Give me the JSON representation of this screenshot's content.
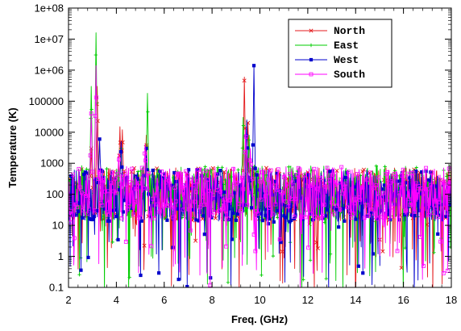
{
  "chart_data": {
    "type": "line",
    "title": "",
    "xlabel": "Freq. (GHz)",
    "ylabel": "Temperature (K)",
    "xlim": [
      2,
      18
    ],
    "ylim": [
      0.1,
      100000000
    ],
    "yscale": "log",
    "grid": false,
    "legend_position": "top-right",
    "x_ticks": [
      2,
      4,
      6,
      8,
      10,
      12,
      14,
      16,
      18
    ],
    "x_tick_labels": [
      "2",
      "4",
      "6",
      "8",
      "10",
      "12",
      "14",
      "16",
      "18"
    ],
    "y_ticks": [
      0.1,
      1,
      10,
      100,
      1000,
      10000,
      100000,
      1000000,
      10000000,
      100000000
    ],
    "y_tick_labels": [
      "0.1",
      "1",
      "10",
      "100",
      "1000",
      "10000",
      "100000",
      "1e+06",
      "1e+07",
      "1e+08"
    ],
    "series": [
      {
        "name": "North",
        "color": "#e41a1c",
        "marker": "x",
        "baseline": 100,
        "noise_seed": 11,
        "peaks": [
          {
            "x": 2.95,
            "y": 3000
          },
          {
            "x": 3.2,
            "y": 300000
          },
          {
            "x": 4.15,
            "y": 15000
          },
          {
            "x": 4.25,
            "y": 12000
          },
          {
            "x": 5.25,
            "y": 8000
          },
          {
            "x": 9.35,
            "y": 600000
          },
          {
            "x": 9.5,
            "y": 20000
          }
        ]
      },
      {
        "name": "East",
        "color": "#00cc00",
        "marker": "+",
        "baseline": 120,
        "noise_seed": 23,
        "peaks": [
          {
            "x": 2.95,
            "y": 300000
          },
          {
            "x": 3.15,
            "y": 16000000
          },
          {
            "x": 4.2,
            "y": 3000
          },
          {
            "x": 5.3,
            "y": 180000
          },
          {
            "x": 9.3,
            "y": 30000
          },
          {
            "x": 9.55,
            "y": 8000
          }
        ]
      },
      {
        "name": "West",
        "color": "#0000cc",
        "marker": "square-filled",
        "baseline": 90,
        "noise_seed": 37,
        "peaks": [
          {
            "x": 3.3,
            "y": 6000
          },
          {
            "x": 4.2,
            "y": 5000
          },
          {
            "x": 5.25,
            "y": 3000
          },
          {
            "x": 9.45,
            "y": 25000
          },
          {
            "x": 9.75,
            "y": 1400000
          }
        ]
      },
      {
        "name": "South",
        "color": "#ff00ff",
        "marker": "square-open",
        "baseline": 110,
        "noise_seed": 53,
        "peaks": [
          {
            "x": 2.95,
            "y": 40000
          },
          {
            "x": 3.15,
            "y": 1400000
          },
          {
            "x": 4.1,
            "y": 2000
          },
          {
            "x": 5.2,
            "y": 4000
          },
          {
            "x": 9.4,
            "y": 12000
          },
          {
            "x": 9.6,
            "y": 3000
          }
        ]
      }
    ]
  }
}
